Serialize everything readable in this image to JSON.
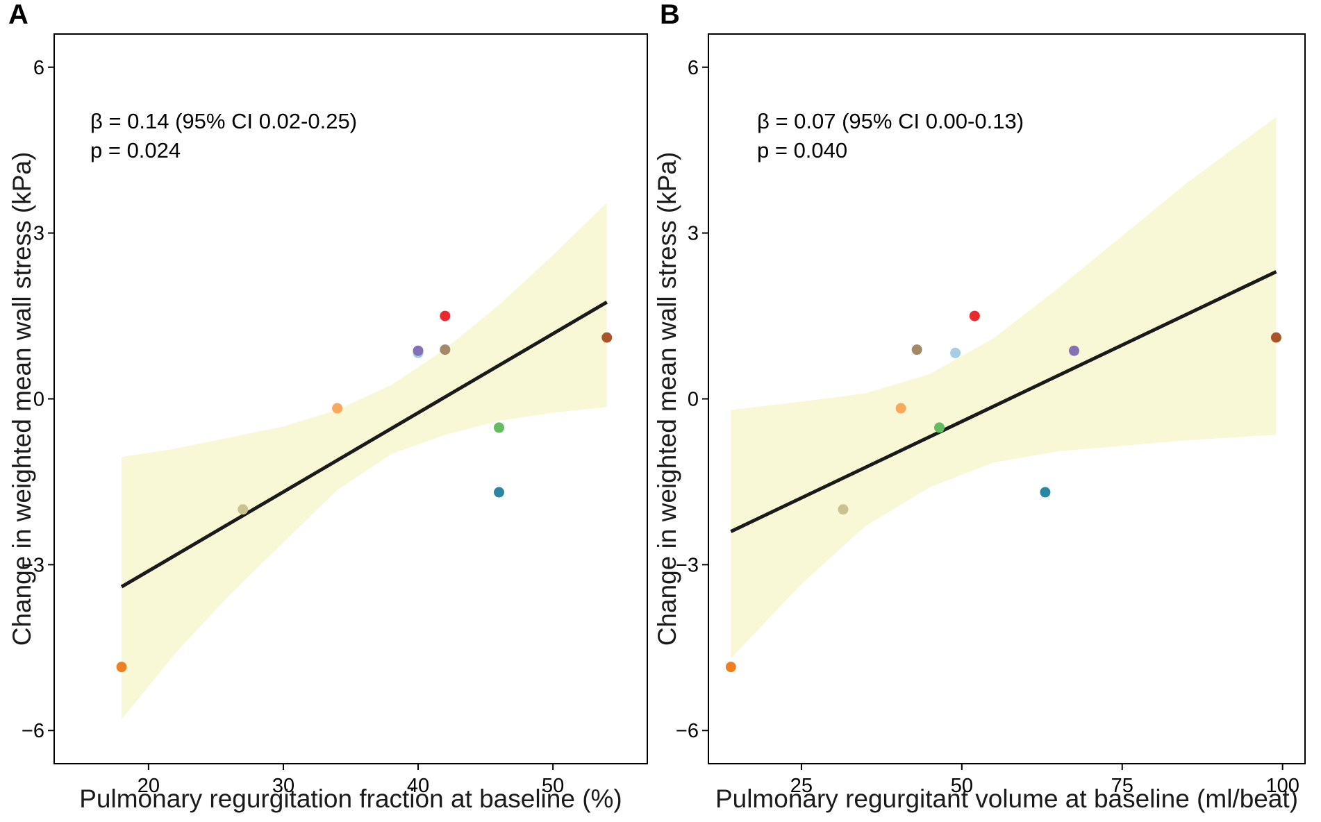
{
  "chart_data": [
    {
      "type": "scatter",
      "panel_label": "A",
      "xlabel": "Pulmonary regurgitation fraction at baseline (%)",
      "ylabel": "Change in weighted mean wall stress (kPa)",
      "xlim": [
        13,
        57
      ],
      "ylim": [
        -6.6,
        6.6
      ],
      "xticks": [
        20,
        30,
        40,
        50
      ],
      "yticks": [
        6,
        3,
        0,
        -3,
        -6
      ],
      "ytick_labels": [
        "6",
        "3",
        "0",
        "−3",
        "−6"
      ],
      "annotation": {
        "beta": "β  =  0.14 (95% CI 0.02-0.25)",
        "p": "p = 0.024"
      },
      "fit": {
        "x": [
          18,
          54
        ],
        "y": [
          -3.4,
          1.75
        ]
      },
      "ci_band": {
        "x": [
          18,
          22,
          26,
          30,
          34,
          38,
          42,
          46,
          50,
          54
        ],
        "upper": [
          -1.05,
          -0.9,
          -0.7,
          -0.5,
          -0.2,
          0.25,
          0.9,
          1.7,
          2.6,
          3.55
        ],
        "lower": [
          -5.8,
          -4.6,
          -3.55,
          -2.6,
          -1.65,
          -1.0,
          -0.65,
          -0.4,
          -0.25,
          -0.15
        ]
      },
      "points": [
        {
          "x": 18,
          "y": -4.85,
          "color": "#F07F22"
        },
        {
          "x": 27,
          "y": -2.0,
          "color": "#C9C291"
        },
        {
          "x": 34,
          "y": -0.17,
          "color": "#F9A85B"
        },
        {
          "x": 40,
          "y": 0.83,
          "color": "#A6CDE4"
        },
        {
          "x": 40,
          "y": 0.87,
          "color": "#8470B5"
        },
        {
          "x": 42,
          "y": 1.5,
          "color": "#E8292E"
        },
        {
          "x": 42,
          "y": 0.89,
          "color": "#A48868"
        },
        {
          "x": 46,
          "y": -0.52,
          "color": "#63BC5D"
        },
        {
          "x": 46,
          "y": -1.69,
          "color": "#2B87A1"
        },
        {
          "x": 54,
          "y": 1.11,
          "color": "#A9552A"
        }
      ],
      "band_color": "#F8F8D7",
      "line_color": "#1A1A1A"
    },
    {
      "type": "scatter",
      "panel_label": "B",
      "xlabel": "Pulmonary regurgitant volume at baseline (ml/beat)",
      "ylabel": "Change in weighted mean wall stress (kPa)",
      "xlim": [
        10.5,
        103.5
      ],
      "ylim": [
        -6.6,
        6.6
      ],
      "xticks": [
        25,
        50,
        75,
        100
      ],
      "yticks": [
        6,
        3,
        0,
        -3,
        -6
      ],
      "ytick_labels": [
        "6",
        "3",
        "0",
        "−3",
        "−6"
      ],
      "annotation": {
        "beta": "β  = 0.07 (95% CI 0.00-0.13)",
        "p": "p = 0.040"
      },
      "fit": {
        "x": [
          14,
          99
        ],
        "y": [
          -2.4,
          2.3
        ]
      },
      "ci_band": {
        "x": [
          14,
          25,
          35,
          45,
          55,
          65,
          75,
          85,
          99
        ],
        "upper": [
          -0.2,
          -0.05,
          0.1,
          0.45,
          1.1,
          2.0,
          2.95,
          3.9,
          5.1
        ],
        "lower": [
          -4.7,
          -3.35,
          -2.3,
          -1.6,
          -1.15,
          -0.95,
          -0.85,
          -0.75,
          -0.65
        ]
      },
      "points": [
        {
          "x": 14,
          "y": -4.85,
          "color": "#F07F22"
        },
        {
          "x": 31.5,
          "y": -2.0,
          "color": "#C9C291"
        },
        {
          "x": 40.5,
          "y": -0.17,
          "color": "#F9A85B"
        },
        {
          "x": 43,
          "y": 0.89,
          "color": "#A48868"
        },
        {
          "x": 46.5,
          "y": -0.52,
          "color": "#63BC5D"
        },
        {
          "x": 49,
          "y": 0.83,
          "color": "#A6CDE4"
        },
        {
          "x": 52,
          "y": 1.5,
          "color": "#E8292E"
        },
        {
          "x": 63,
          "y": -1.69,
          "color": "#2B87A1"
        },
        {
          "x": 67.5,
          "y": 0.87,
          "color": "#8470B5"
        },
        {
          "x": 99,
          "y": 1.11,
          "color": "#A9552A"
        }
      ],
      "band_color": "#F8F8D7",
      "line_color": "#1A1A1A"
    }
  ]
}
